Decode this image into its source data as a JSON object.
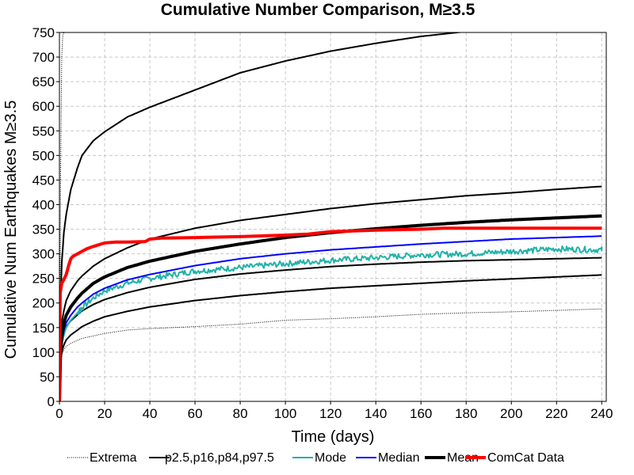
{
  "chart_data": {
    "type": "line",
    "title": "Cumulative Number Comparison, M≥3.5",
    "xlabel": "Time (days)",
    "ylabel": "Cumulative Num Earthquakes M≥3.5",
    "xlim": [
      0,
      242
    ],
    "ylim": [
      0,
      750
    ],
    "xticks": [
      0,
      20,
      40,
      60,
      80,
      100,
      120,
      140,
      160,
      180,
      200,
      220,
      240
    ],
    "yticks": [
      0,
      50,
      100,
      150,
      200,
      250,
      300,
      350,
      400,
      450,
      500,
      550,
      600,
      650,
      700,
      750
    ],
    "grid": true,
    "legend_position": "bottom",
    "legend": [
      "Extrema",
      "p2.5,p16,p84,p97.5",
      "Mode",
      "Median",
      "Mean",
      "ComCat Data"
    ],
    "series": [
      {
        "name": "Extrema",
        "color": "#000000",
        "style": "dotted",
        "x": [
          0,
          0.5,
          1,
          2,
          3,
          5,
          8,
          10,
          15,
          20,
          30,
          40,
          60,
          80,
          100,
          120,
          140,
          160,
          180,
          200,
          220,
          240
        ],
        "y": [
          0,
          80,
          95,
          105,
          112,
          118,
          124,
          128,
          133,
          138,
          145,
          148,
          152,
          157,
          165,
          168,
          172,
          177,
          180,
          182,
          185,
          188
        ]
      },
      {
        "name": "Extrema",
        "color": "#000000",
        "style": "dotted",
        "x": [
          0,
          0.5,
          1,
          1.5,
          2
        ],
        "y": [
          0,
          450,
          700,
          745,
          750
        ]
      },
      {
        "name": "p2.5,p16,p84,p97.5",
        "color": "#000000",
        "style": "solid",
        "x": [
          0,
          0.5,
          1,
          2,
          3,
          5,
          8,
          10,
          15,
          20,
          30,
          40,
          60,
          80,
          100,
          120,
          140,
          160,
          180,
          200,
          220,
          240
        ],
        "y": [
          0,
          80,
          100,
          115,
          125,
          135,
          145,
          152,
          163,
          172,
          183,
          192,
          205,
          215,
          223,
          230,
          235,
          240,
          245,
          249,
          253,
          257
        ]
      },
      {
        "name": "p2.5,p16,p84,p97.5",
        "color": "#000000",
        "style": "solid",
        "x": [
          0,
          0.5,
          1,
          2,
          3,
          5,
          8,
          10,
          15,
          20,
          30,
          40,
          60,
          80,
          100,
          120,
          140,
          160,
          180,
          200,
          220,
          240
        ],
        "y": [
          0,
          95,
          120,
          140,
          152,
          164,
          176,
          184,
          197,
          207,
          221,
          232,
          248,
          259,
          267,
          274,
          279,
          283,
          286,
          288,
          290,
          292
        ]
      },
      {
        "name": "p2.5,p16,p84,p97.5",
        "color": "#000000",
        "style": "solid",
        "x": [
          0,
          0.5,
          1,
          2,
          3,
          5,
          8,
          10,
          15,
          20,
          30,
          40,
          60,
          80,
          100,
          120,
          140,
          160,
          180,
          200,
          220,
          240
        ],
        "y": [
          0,
          120,
          160,
          185,
          205,
          225,
          245,
          255,
          275,
          290,
          312,
          330,
          352,
          368,
          380,
          392,
          402,
          410,
          418,
          424,
          431,
          437
        ]
      },
      {
        "name": "p2.5,p16,p84,p97.5",
        "color": "#000000",
        "style": "solid",
        "x": [
          0,
          0.5,
          1,
          2,
          3,
          5,
          8,
          10,
          15,
          20,
          30,
          40,
          60,
          80,
          100,
          120,
          140,
          160,
          180,
          200,
          220,
          240
        ],
        "y": [
          0,
          200,
          280,
          345,
          380,
          430,
          475,
          500,
          530,
          548,
          578,
          598,
          633,
          668,
          692,
          712,
          728,
          742,
          752,
          760,
          768,
          775
        ]
      },
      {
        "name": "Mode",
        "color": "#20b2aa",
        "style": "solid",
        "noisy": true,
        "x": [
          0,
          0.5,
          1,
          2,
          3,
          5,
          8,
          10,
          15,
          20,
          30,
          40,
          60,
          80,
          100,
          120,
          140,
          160,
          180,
          200,
          220,
          240
        ],
        "y": [
          0,
          90,
          115,
          135,
          150,
          165,
          180,
          190,
          210,
          225,
          240,
          250,
          265,
          272,
          280,
          287,
          292,
          298,
          300,
          305,
          310,
          308
        ]
      },
      {
        "name": "Median",
        "color": "#0000ff",
        "style": "solid",
        "x": [
          0,
          0.5,
          1,
          2,
          3,
          5,
          8,
          10,
          15,
          20,
          30,
          40,
          60,
          80,
          100,
          120,
          140,
          160,
          180,
          200,
          220,
          240
        ],
        "y": [
          0,
          95,
          120,
          145,
          160,
          175,
          192,
          200,
          218,
          230,
          247,
          258,
          276,
          290,
          300,
          308,
          314,
          320,
          325,
          330,
          333,
          336
        ]
      },
      {
        "name": "Mean",
        "color": "#000000",
        "style": "thick",
        "x": [
          0,
          0.5,
          1,
          2,
          3,
          5,
          8,
          10,
          15,
          20,
          30,
          40,
          60,
          80,
          100,
          120,
          140,
          160,
          180,
          200,
          220,
          240
        ],
        "y": [
          0,
          100,
          130,
          160,
          175,
          192,
          210,
          220,
          240,
          253,
          272,
          285,
          305,
          320,
          333,
          343,
          351,
          358,
          364,
          369,
          373,
          377
        ]
      },
      {
        "name": "ComCat Data",
        "color": "#ff0000",
        "style": "thick",
        "x": [
          0,
          0.3,
          1,
          2,
          3,
          4,
          5,
          6,
          8,
          10,
          12,
          15,
          20,
          25,
          30,
          38,
          40,
          45,
          60,
          80,
          100,
          110,
          120,
          140,
          160,
          170,
          180,
          200,
          220,
          240
        ],
        "y": [
          0,
          220,
          240,
          248,
          258,
          275,
          290,
          295,
          300,
          305,
          310,
          315,
          322,
          324,
          324,
          325,
          330,
          332,
          333,
          335,
          338,
          340,
          345,
          348,
          350,
          352,
          352,
          352,
          352,
          352
        ]
      }
    ]
  }
}
